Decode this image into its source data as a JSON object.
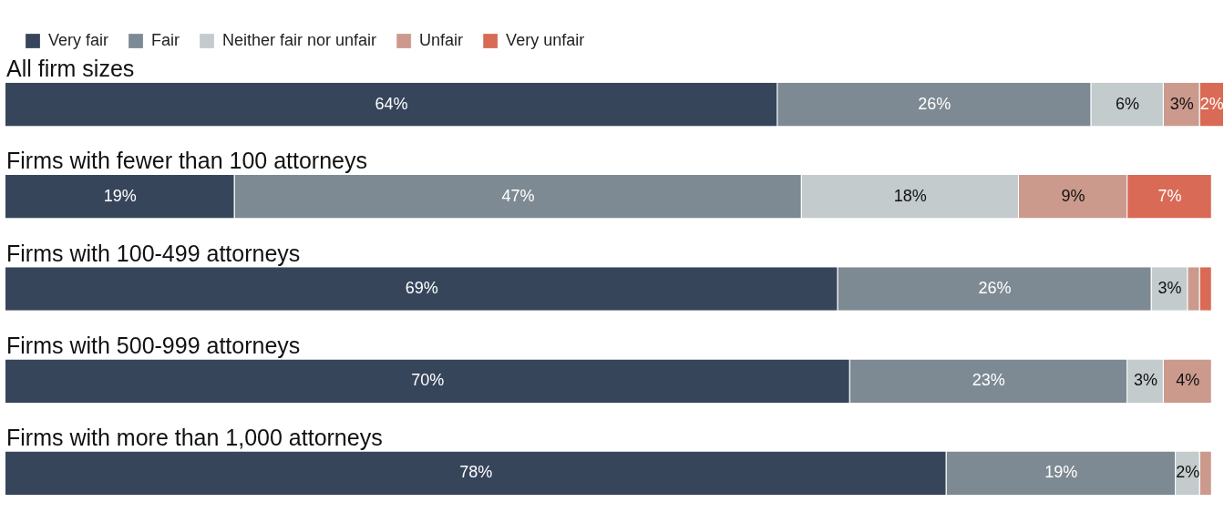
{
  "chart_data": {
    "type": "bar",
    "orientation": "horizontal",
    "stacked": true,
    "legend": "top left",
    "tick_labels": false,
    "grid": false,
    "categories": [
      "All firm sizes",
      "Firms with fewer than 100 attorneys",
      "Firms with 100-499 attorneys",
      "Firms with 500-999 attorneys",
      "Firms with more than 1,000 attorneys"
    ],
    "xlim": [
      0,
      101
    ],
    "series": [
      {
        "name": "Very fair",
        "color": "#36455a",
        "values": [
          64,
          19,
          69,
          70,
          78
        ],
        "value_labels": [
          "64%",
          "19%",
          "69%",
          "70%",
          "78%"
        ]
      },
      {
        "name": "Fair",
        "color": "#7d8a93",
        "values": [
          26,
          47,
          26,
          23,
          19
        ],
        "value_labels": [
          "26%",
          "47%",
          "26%",
          "23%",
          "19%"
        ]
      },
      {
        "name": "Neither fair nor unfair",
        "color": "#c3cbcc",
        "values": [
          6,
          18,
          3,
          3,
          2
        ],
        "value_labels": [
          "6%",
          "18%",
          "3%",
          "3%",
          "2%"
        ]
      },
      {
        "name": "Unfair",
        "color": "#cc9a8d",
        "values": [
          3,
          9,
          1,
          4,
          1
        ],
        "value_labels": [
          "3%",
          "9%",
          null,
          "4%",
          null
        ]
      },
      {
        "name": "Very unfair",
        "color": "#d96a55",
        "values": [
          2,
          7,
          1,
          0,
          0
        ],
        "value_labels": [
          "2%",
          "7%",
          null,
          null,
          null
        ]
      }
    ]
  }
}
